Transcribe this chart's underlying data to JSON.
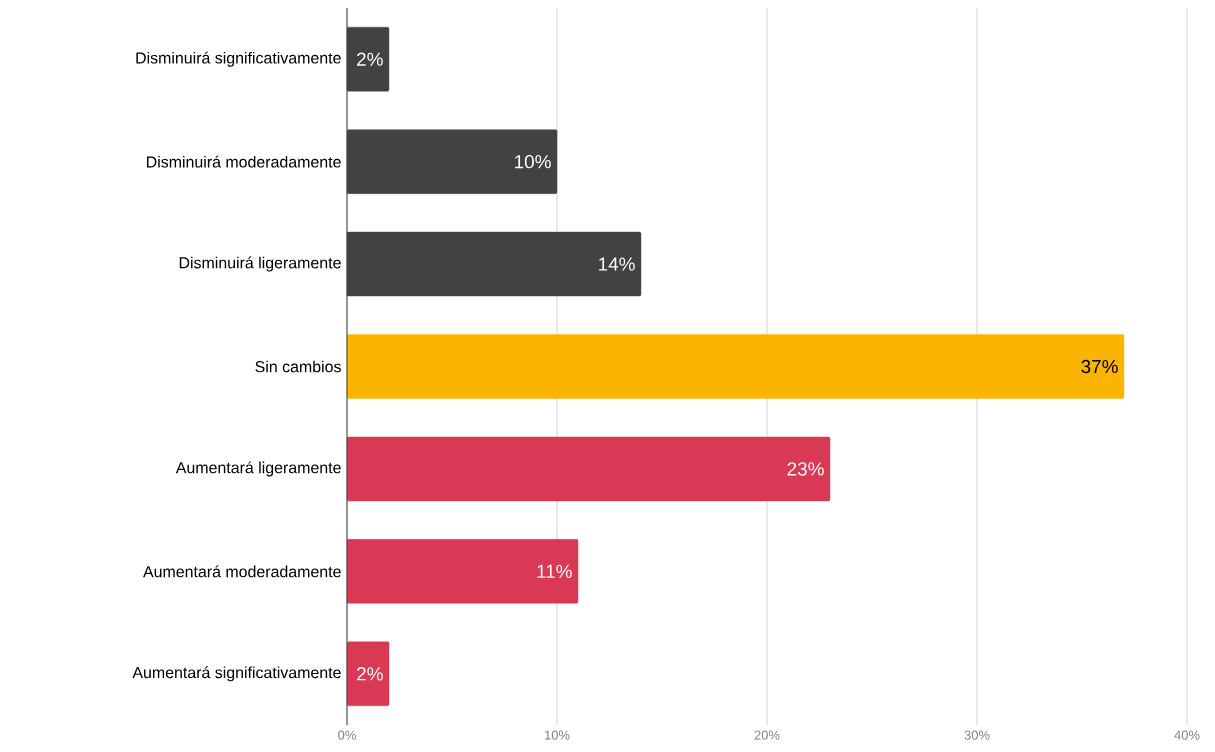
{
  "chart_data": {
    "type": "bar",
    "orientation": "horizontal",
    "categories": [
      "Disminuirá significativamente",
      "Disminuirá moderadamente",
      "Disminuirá ligeramente",
      "Sin cambios",
      "Aumentará ligeramente",
      "Aumentará moderadamente",
      "Aumentará significativamente"
    ],
    "values": [
      2,
      10,
      14,
      37,
      23,
      11,
      2
    ],
    "colors": [
      "#424242",
      "#424242",
      "#424242",
      "#fbb500",
      "#d93954",
      "#d93954",
      "#d93954"
    ],
    "xlim": [
      0,
      40
    ],
    "xticks": [
      {
        "value": 0,
        "label": "0%"
      },
      {
        "value": 10,
        "label": "10%"
      },
      {
        "value": 20,
        "label": "20%"
      },
      {
        "value": 30,
        "label": "30%"
      },
      {
        "value": 40,
        "label": "40%"
      }
    ],
    "value_labels": [
      "2%",
      "10%",
      "14%",
      "37%",
      "23%",
      "11%",
      "2%"
    ],
    "grid": "x"
  }
}
